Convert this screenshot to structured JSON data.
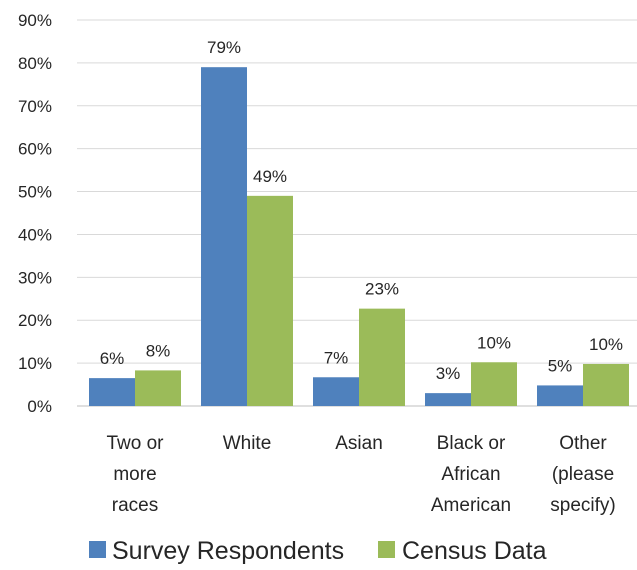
{
  "chart_data": {
    "type": "bar",
    "categories": [
      [
        "Two or",
        "more",
        "races"
      ],
      [
        "White"
      ],
      [
        "Asian"
      ],
      [
        "Black or",
        "African",
        "American"
      ],
      [
        "Other",
        "(please",
        "specify)"
      ]
    ],
    "series": [
      {
        "name": "Survey Respondents",
        "color": "#4f81bd",
        "values": [
          6.5,
          79,
          6.7,
          3,
          4.8
        ],
        "labels": [
          "6%",
          "79%",
          "7%",
          "3%",
          "5%"
        ]
      },
      {
        "name": "Census Data",
        "color": "#9bbb59",
        "values": [
          8.3,
          49,
          22.7,
          10.2,
          9.8
        ],
        "labels": [
          "8%",
          "49%",
          "23%",
          "10%",
          "10%"
        ]
      }
    ],
    "ylim": [
      0,
      90
    ],
    "ytick_values": [
      0,
      10,
      20,
      30,
      40,
      50,
      60,
      70,
      80,
      90
    ],
    "ytick_labels": [
      "0%",
      "10%",
      "20%",
      "30%",
      "40%",
      "50%",
      "60%",
      "70%",
      "80%",
      "90%"
    ],
    "grid": true,
    "legend_position": "bottom"
  }
}
